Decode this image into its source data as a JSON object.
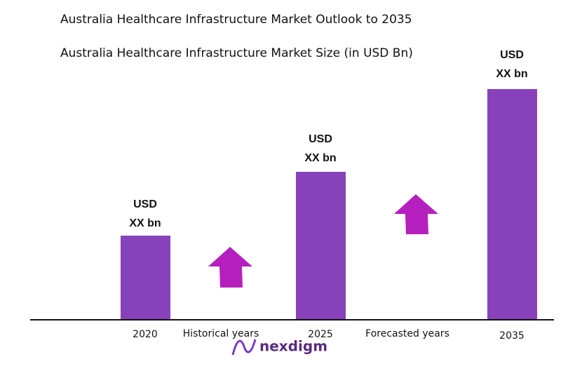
{
  "header": {
    "title": "Australia Healthcare Infrastructure Market Outlook to 2035",
    "subtitle": "Australia Healthcare Infrastructure Market Size (in USD Bn)"
  },
  "bars": [
    {
      "year": "2020",
      "label": [
        "USD",
        "XX bn"
      ]
    },
    {
      "year": "2025",
      "label": [
        "USD",
        "XX bn"
      ]
    },
    {
      "year": "2035",
      "label": [
        "USD",
        "XX bn"
      ]
    }
  ],
  "periods": [
    "Historical years",
    "Forecasted years"
  ],
  "logo": "nexdigm"
}
